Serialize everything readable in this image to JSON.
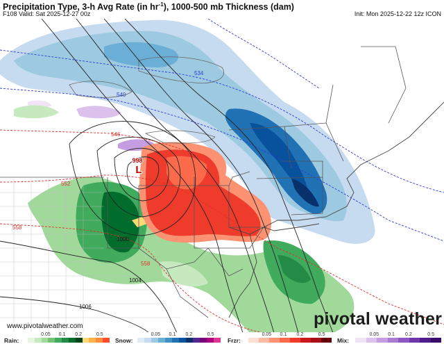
{
  "header": {
    "title_prefix": "Precipitation Type, 3-h Avg Rate (in hr",
    "title_sup": "-1",
    "title_suffix": "), 1000-500 mb Thickness (dam)",
    "valid": "F108 Valid: Sat 2025-12-27 00z",
    "init": "Init: Mon 2025-12-22 12z ICON"
  },
  "map": {
    "low_center_value": "998",
    "low_center_letter": "L",
    "thickness_labels": [
      "534",
      "540",
      "546",
      "552",
      "558"
    ],
    "isobar_labels": [
      "1000",
      "1004",
      "1006"
    ],
    "thickness_534": "534",
    "thickness_540": "540",
    "thickness_546": "546",
    "thickness_552": "552",
    "thickness_558_left": "558",
    "thickness_558_bottom": "558",
    "isobar_1000": "1000",
    "isobar_1004": "1004",
    "isobar_1006": "1006",
    "colors": {
      "rain_light": "#a6dba0",
      "rain_mid": "#5aae61",
      "rain_heavy": "#1b7837",
      "snow_light": "#c6dbef",
      "snow_mid": "#6baed6",
      "snow_heavy": "#2171b5",
      "frzr_light": "#fc9272",
      "frzr_mid": "#ef3b2c",
      "mix": "#9e6ac8",
      "thickness_cold": "#2b3bd6",
      "thickness_warm": "#e0302a"
    }
  },
  "footer": {
    "website": "www.pivotalweather.com",
    "brand": "pivotal weather",
    "legends": [
      {
        "name": "Rain:",
        "ticks": [
          "0.05",
          "0.1",
          "0.2",
          "0.5"
        ],
        "colors": [
          "#e5f5e0",
          "#c7e9c0",
          "#a1d99b",
          "#74c476",
          "#41ab5d",
          "#238b45",
          "#006d2c",
          "#00441b",
          "#fed976",
          "#feb24c",
          "#fd8d3c",
          "#fc4e2a"
        ]
      },
      {
        "name": "Snow:",
        "ticks": [
          "0.05",
          "0.1",
          "0.2",
          "0.5"
        ],
        "colors": [
          "#deebf7",
          "#c6dbef",
          "#9ecae1",
          "#6baed6",
          "#4292c6",
          "#2171b5",
          "#08519c",
          "#08306b",
          "#54278f",
          "#7a0177",
          "#ae017e",
          "#dd3497"
        ]
      },
      {
        "name": "Frzr:",
        "ticks": [
          "0.05",
          "0.1",
          "0.2",
          "0.5"
        ],
        "colors": [
          "#fee0d2",
          "#fcbba1",
          "#fc9272",
          "#fb6a4a",
          "#ef3b2c",
          "#cb181d",
          "#a50f15",
          "#67000d"
        ]
      },
      {
        "name": "Mix:",
        "ticks": [
          "0.05",
          "0.1",
          "0.2",
          "0.5"
        ],
        "colors": [
          "#f2e4f7",
          "#dcc1ec",
          "#c49ee0",
          "#a97bd2",
          "#8c57c1",
          "#6e36ab",
          "#511b8c",
          "#3a0a6b"
        ]
      }
    ]
  }
}
